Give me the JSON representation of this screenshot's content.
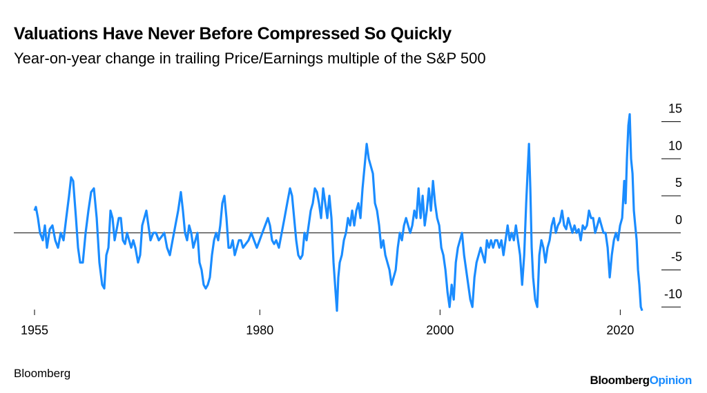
{
  "chart_data": {
    "type": "line",
    "title": "Valuations Have Never Before Compressed So Quickly",
    "subtitle": "Year-on-year change in trailing Price/Earnings multiple of the S&P 500",
    "source": "Bloomberg",
    "logo": {
      "brand": "Bloomberg",
      "section": "Opinion",
      "brand_color": "#000000",
      "section_color": "#1a8cff"
    },
    "xlim": [
      1955,
      2022.5
    ],
    "xticks": [
      1955,
      1980,
      2000,
      2020
    ],
    "ylim": [
      -11,
      17
    ],
    "yticks": [
      -10,
      -5,
      0,
      5,
      10,
      15
    ],
    "x": [
      1955.0,
      1955.15,
      1955.38,
      1955.61,
      1955.92,
      1956.15,
      1956.38,
      1956.69,
      1956.99,
      1957.3,
      1957.61,
      1957.91,
      1958.22,
      1958.52,
      1958.83,
      1959.06,
      1959.29,
      1959.6,
      1959.83,
      1960.06,
      1960.36,
      1960.67,
      1960.98,
      1961.28,
      1961.59,
      1961.9,
      1962.2,
      1962.51,
      1962.74,
      1962.97,
      1963.2,
      1963.43,
      1963.66,
      1963.89,
      1964.12,
      1964.35,
      1964.58,
      1964.81,
      1965.04,
      1965.27,
      1965.5,
      1965.73,
      1965.96,
      1966.19,
      1966.49,
      1966.72,
      1966.95,
      1967.18,
      1967.41,
      1967.64,
      1967.87,
      1968.18,
      1968.48,
      1968.79,
      1969.1,
      1969.4,
      1969.71,
      1970.02,
      1970.32,
      1970.63,
      1970.94,
      1971.24,
      1971.47,
      1971.7,
      1971.93,
      1972.16,
      1972.39,
      1972.62,
      1972.85,
      1973.08,
      1973.31,
      1973.54,
      1973.77,
      1974.0,
      1974.23,
      1974.46,
      1974.69,
      1974.92,
      1975.15,
      1975.38,
      1975.61,
      1975.84,
      1976.07,
      1976.3,
      1976.53,
      1976.76,
      1976.99,
      1977.22,
      1977.45,
      1977.68,
      1977.91,
      1978.14,
      1978.44,
      1978.75,
      1979.06,
      1979.36,
      1979.67,
      1979.98,
      1980.28,
      1980.59,
      1980.9,
      1981.13,
      1981.36,
      1981.59,
      1981.82,
      1982.12,
      1982.43,
      1982.74,
      1983.04,
      1983.35,
      1983.58,
      1983.81,
      1984.04,
      1984.27,
      1984.5,
      1984.73,
      1984.96,
      1985.19,
      1985.42,
      1985.65,
      1985.88,
      1986.11,
      1986.34,
      1986.57,
      1986.8,
      1987.03,
      1987.26,
      1987.49,
      1987.72,
      1987.95,
      1988.18,
      1988.41,
      1988.56,
      1988.71,
      1988.87,
      1989.1,
      1989.33,
      1989.56,
      1989.79,
      1990.02,
      1990.25,
      1990.48,
      1990.71,
      1990.94,
      1991.17,
      1991.4,
      1991.63,
      1991.86,
      1992.09,
      1992.32,
      1992.55,
      1992.78,
      1993.01,
      1993.24,
      1993.47,
      1993.7,
      1993.93,
      1994.16,
      1994.39,
      1994.62,
      1994.85,
      1995.08,
      1995.31,
      1995.54,
      1995.77,
      1996.0,
      1996.23,
      1996.46,
      1996.69,
      1996.92,
      1997.15,
      1997.38,
      1997.61,
      1997.84,
      1998.07,
      1998.3,
      1998.53,
      1998.76,
      1998.99,
      1999.22,
      1999.45,
      1999.68,
      1999.91,
      2000.14,
      2000.37,
      2000.6,
      2000.83,
      2001.06,
      2001.29,
      2001.52,
      2001.75,
      2001.98,
      2002.21,
      2002.44,
      2002.67,
      2002.9,
      2003.13,
      2003.36,
      2003.59,
      2003.82,
      2004.05,
      2004.28,
      2004.51,
      2004.74,
      2004.97,
      2005.2,
      2005.43,
      2005.66,
      2005.89,
      2006.12,
      2006.35,
      2006.58,
      2006.81,
      2007.04,
      2007.27,
      2007.5,
      2007.73,
      2007.96,
      2008.19,
      2008.42,
      2008.65,
      2008.88,
      2009.11,
      2009.34,
      2009.56,
      2009.71,
      2009.87,
      2010.02,
      2010.17,
      2010.33,
      2010.56,
      2010.79,
      2011.02,
      2011.25,
      2011.47,
      2011.7,
      2011.93,
      2012.16,
      2012.39,
      2012.62,
      2012.85,
      2013.08,
      2013.31,
      2013.54,
      2013.77,
      2014.0,
      2014.23,
      2014.46,
      2014.69,
      2014.92,
      2015.15,
      2015.38,
      2015.61,
      2015.84,
      2016.07,
      2016.3,
      2016.53,
      2016.76,
      2016.99,
      2017.22,
      2017.45,
      2017.68,
      2017.91,
      2018.14,
      2018.37,
      2018.6,
      2018.83,
      2019.06,
      2019.29,
      2019.52,
      2019.75,
      2019.98,
      2020.21,
      2020.44,
      2020.59,
      2020.74,
      2020.9,
      2021.05,
      2021.2,
      2021.36,
      2021.51,
      2021.66,
      2021.82,
      2021.97,
      2022.12,
      2022.28,
      2022.43
    ],
    "series": [
      {
        "color": "#1a8cff",
        "values": [
          3,
          3.5,
          2,
          0,
          -1,
          1,
          -2,
          0.5,
          1,
          -1,
          -2,
          0,
          -1,
          2,
          5,
          7.5,
          7,
          2,
          -2,
          -4,
          -4,
          0,
          3,
          5.5,
          6,
          2,
          -4,
          -7,
          -7.5,
          -3,
          -2,
          3,
          2,
          -1,
          0.5,
          2,
          2,
          -1,
          -1.5,
          0,
          -1,
          -2,
          -1,
          -2,
          -4,
          -3,
          1,
          2,
          3,
          1,
          -1,
          0,
          0,
          -1,
          -0.5,
          0,
          -2,
          -3,
          -1,
          1,
          3,
          5.5,
          3,
          0,
          -1,
          1,
          0,
          -2,
          -1,
          0,
          -4,
          -5,
          -7,
          -7.5,
          -7,
          -6,
          -3,
          -1,
          0,
          -1,
          1,
          4,
          5,
          2,
          -2,
          -2,
          -1,
          -3,
          -2,
          -1,
          -1,
          -2,
          -1.5,
          -1,
          0,
          -1,
          -2,
          -1,
          0,
          1,
          2,
          1,
          -1,
          -1.5,
          -1,
          -2,
          0,
          2,
          4,
          6,
          5,
          2,
          -1,
          -3,
          -3.5,
          -3,
          0,
          -1,
          1,
          3,
          4,
          6,
          5.5,
          4,
          2,
          6,
          4,
          2,
          5,
          2,
          -4,
          -8,
          -10.5,
          -6,
          -4,
          -3,
          -1,
          0,
          2,
          1,
          3,
          1,
          3,
          4,
          2,
          6,
          9,
          12,
          10,
          9,
          8,
          4,
          3,
          1,
          -2,
          -1,
          -3,
          -4,
          -5,
          -7,
          -6,
          -5,
          -2,
          0,
          -1,
          1,
          2,
          1,
          0,
          1,
          3,
          2,
          6,
          2,
          5,
          1,
          3,
          6,
          3,
          7,
          4,
          2,
          1,
          -2,
          -3,
          -5,
          -8,
          -10,
          -7,
          -9,
          -4,
          -2,
          -1,
          0,
          -3,
          -5,
          -7,
          -9,
          -10,
          -6,
          -4,
          -3,
          -2,
          -3,
          -4,
          -1,
          -2,
          -1,
          -2,
          -1,
          -1,
          -2,
          -1,
          -3,
          -1,
          1,
          -1,
          0,
          -1,
          1,
          -1,
          -3,
          -7,
          -3,
          4,
          8,
          12,
          6,
          -2,
          -6,
          -9,
          -10,
          -3,
          -1,
          -2,
          -4,
          -2,
          -1,
          1,
          2,
          0,
          1,
          1.5,
          3,
          1,
          0.5,
          2,
          1,
          0,
          1,
          0,
          0.5,
          -1,
          1,
          0.5,
          1,
          3,
          2,
          2,
          0,
          1,
          2,
          1,
          0,
          0,
          -2,
          -6,
          -3,
          -1,
          0,
          -1,
          1,
          2,
          7,
          4,
          10,
          14.5,
          16,
          10,
          8,
          3,
          1,
          -1,
          -5,
          -7,
          -10,
          -10.5
        ]
      }
    ]
  }
}
